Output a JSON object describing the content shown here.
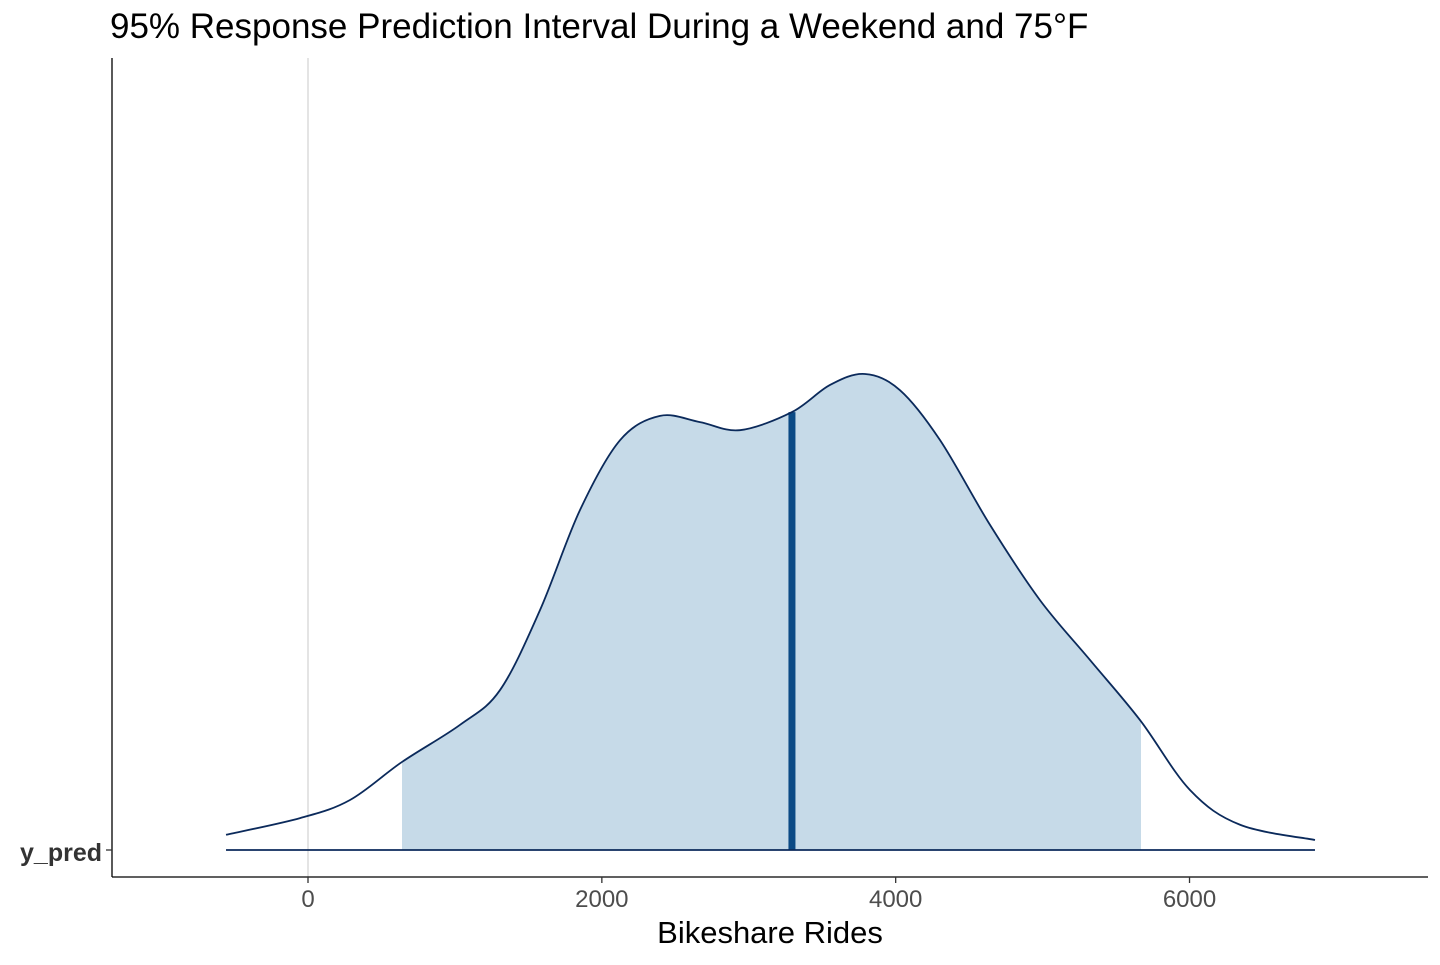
{
  "chart_data": {
    "type": "area",
    "title": "95% Response Prediction Interval During a Weekend and 75°F",
    "xlabel": "Bikeshare Rides",
    "ylabel": "",
    "y_tick_labels": [
      "y_pred"
    ],
    "x_ticks": [
      0,
      2000,
      4000,
      6000
    ],
    "x_tick_labels": [
      "0",
      "2000",
      "4000",
      "6000"
    ],
    "xlim": [
      -1330,
      7630
    ],
    "grid": "vertical line at 0",
    "series": [
      {
        "name": "y_pred density (relative)",
        "x": [
          -558,
          -54,
          286,
          640,
          1035,
          1307,
          1579,
          1851,
          2124,
          2396,
          2668,
          2940,
          3294,
          3553,
          3791,
          4029,
          4302,
          4642,
          4982,
          5323,
          5663,
          6003,
          6344,
          6854
        ],
        "density": [
          0.032,
          0.067,
          0.105,
          0.185,
          0.263,
          0.336,
          0.504,
          0.714,
          0.861,
          0.912,
          0.899,
          0.882,
          0.92,
          0.977,
          1.0,
          0.966,
          0.861,
          0.683,
          0.525,
          0.399,
          0.273,
          0.126,
          0.053,
          0.021
        ]
      }
    ],
    "interval_95": [
      640,
      5670
    ],
    "median": 3294,
    "colors": {
      "fill": "#c6dae8",
      "line": "#0b2a5b",
      "median": "#0b4a85",
      "grid": "#dcdcdc"
    }
  }
}
